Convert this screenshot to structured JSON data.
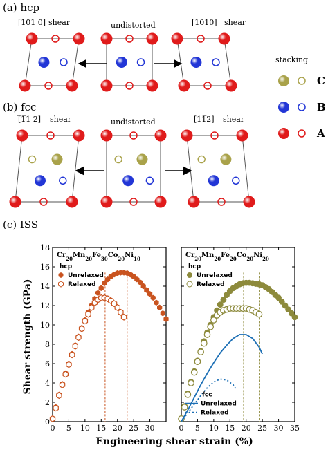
{
  "panel_a": {
    "label": "(a) hcp",
    "left_direction": "[1̅0̅1 0]",
    "left_shear": "shear",
    "center": "undistorted",
    "right_direction": "[10̅1̅0]",
    "right_shear": "shear"
  },
  "panel_b": {
    "label": "(b) fcc",
    "left_direction": "[̅1̅1 2]",
    "left_shear": "shear",
    "center": "undistorted",
    "right_direction": "[11̅2]",
    "right_shear": "shear"
  },
  "stacking": {
    "title": "stacking",
    "rows": [
      {
        "label": "C",
        "color": "#a9a24a"
      },
      {
        "label": "B",
        "color": "#2236d6"
      },
      {
        "label": "A",
        "color": "#e01b1b"
      }
    ]
  },
  "panel_c": {
    "label": "(c) ISS"
  },
  "chart_data": [
    {
      "type": "scatter",
      "title": "Cr20Mn20Fe30Co20Ni10",
      "title_parts": [
        [
          "Cr",
          "20"
        ],
        [
          "Mn",
          "20"
        ],
        [
          "Fe",
          "30"
        ],
        [
          "Co",
          "20"
        ],
        [
          "Ni",
          "10"
        ]
      ],
      "xlabel": "Engineering shear strain (%)",
      "ylabel": "Shear strength (GPa)",
      "xlim": [
        0,
        35
      ],
      "ylim": [
        0,
        18
      ],
      "xticks": [
        0,
        5,
        10,
        15,
        20,
        25,
        30
      ],
      "yticks": [
        0,
        2,
        4,
        6,
        8,
        10,
        12,
        14,
        16,
        18
      ],
      "legend_title": "hcp",
      "legend_position": "top-left",
      "color": "#c9531f",
      "series": [
        {
          "name": "Unrelaxed",
          "style": "filled-hexagon",
          "x": [
            0,
            1,
            2,
            3,
            4,
            5,
            6,
            7,
            8,
            9,
            10,
            11,
            12,
            13,
            14,
            15,
            16,
            17,
            18,
            19,
            20,
            21,
            22,
            23,
            24,
            25,
            26,
            27,
            28,
            29,
            30,
            31,
            32,
            33,
            34,
            35
          ],
          "y": [
            0.3,
            1.5,
            2.8,
            3.9,
            5.0,
            6.0,
            7.0,
            7.9,
            8.8,
            9.7,
            10.5,
            11.3,
            12.0,
            12.7,
            13.3,
            13.8,
            14.3,
            14.7,
            15.0,
            15.2,
            15.35,
            15.4,
            15.4,
            15.35,
            15.2,
            15.0,
            14.7,
            14.4,
            14.0,
            13.6,
            13.2,
            12.8,
            12.3,
            11.8,
            11.2,
            10.6
          ]
        },
        {
          "name": "Relaxed",
          "style": "open-hexagon",
          "x": [
            0,
            1,
            2,
            3,
            4,
            5,
            6,
            7,
            8,
            9,
            10,
            11,
            12,
            13,
            14,
            15,
            16,
            17,
            18,
            19,
            20,
            21,
            22
          ],
          "y": [
            0.3,
            1.4,
            2.7,
            3.8,
            4.9,
            5.9,
            6.9,
            7.8,
            8.7,
            9.6,
            10.4,
            11.1,
            11.8,
            12.3,
            12.6,
            12.8,
            12.8,
            12.7,
            12.5,
            12.2,
            11.8,
            11.3,
            10.8
          ]
        }
      ],
      "vlines": [
        16.2,
        23.0
      ]
    },
    {
      "type": "line",
      "title": "Cr20Mn20Fe20Co20Ni20",
      "title_parts": [
        [
          "Cr",
          "20"
        ],
        [
          "Mn",
          "20"
        ],
        [
          "Fe",
          "20"
        ],
        [
          "Co",
          "20"
        ],
        [
          "Ni",
          "20"
        ]
      ],
      "xlabel": "Engineering shear strain (%)",
      "xlim": [
        0,
        35
      ],
      "ylim": [
        0,
        18
      ],
      "xticks": [
        0,
        5,
        10,
        15,
        20,
        25,
        30,
        35
      ],
      "yticks": [
        0,
        2,
        4,
        6,
        8,
        10,
        12,
        14,
        16,
        18
      ],
      "legend_title": "hcp",
      "legend2_title": "fcc",
      "color": "#8d8a3c",
      "line_color": "#1c6fb5",
      "series": [
        {
          "name": "Unrelaxed",
          "group": "hcp",
          "style": "filled-circle",
          "x": [
            0,
            1,
            2,
            3,
            4,
            5,
            6,
            7,
            8,
            9,
            10,
            11,
            12,
            13,
            14,
            15,
            16,
            17,
            18,
            19,
            20,
            21,
            22,
            23,
            24,
            25,
            26,
            27,
            28,
            29,
            30,
            31,
            32,
            33,
            34,
            35
          ],
          "y": [
            0.3,
            1.6,
            2.9,
            4.1,
            5.2,
            6.3,
            7.3,
            8.3,
            9.2,
            10.0,
            10.8,
            11.5,
            12.1,
            12.6,
            13.1,
            13.5,
            13.8,
            14.0,
            14.2,
            14.3,
            14.35,
            14.35,
            14.3,
            14.25,
            14.2,
            14.1,
            13.9,
            13.7,
            13.4,
            13.1,
            12.8,
            12.4,
            12.0,
            11.6,
            11.2,
            10.8
          ]
        },
        {
          "name": "Relaxed",
          "group": "hcp",
          "style": "open-circle",
          "x": [
            0,
            1,
            2,
            3,
            4,
            5,
            6,
            7,
            8,
            9,
            10,
            11,
            12,
            13,
            14,
            15,
            16,
            17,
            18,
            19,
            20,
            21,
            22,
            23,
            24
          ],
          "y": [
            0.3,
            1.5,
            2.8,
            4.0,
            5.1,
            6.2,
            7.2,
            8.1,
            9.0,
            9.8,
            10.5,
            11.0,
            11.3,
            11.5,
            11.6,
            11.7,
            11.7,
            11.7,
            11.7,
            11.7,
            11.7,
            11.6,
            11.5,
            11.3,
            11.1
          ]
        },
        {
          "name": "Unrelaxed",
          "group": "fcc",
          "style": "solid-line",
          "x": [
            0,
            2,
            4,
            6,
            8,
            10,
            12,
            14,
            16,
            18,
            20,
            22,
            24,
            25
          ],
          "y": [
            0,
            1.2,
            2.5,
            3.8,
            5.0,
            6.1,
            7.1,
            7.9,
            8.6,
            9.0,
            9.0,
            8.6,
            7.7,
            7.0
          ]
        },
        {
          "name": "Relaxed",
          "group": "fcc",
          "style": "dotted-line",
          "x": [
            0,
            2,
            4,
            6,
            8,
            10,
            12,
            14,
            16,
            17
          ],
          "y": [
            0,
            0.9,
            1.8,
            2.7,
            3.5,
            4.1,
            4.4,
            4.3,
            3.8,
            3.3
          ]
        }
      ],
      "vlines": [
        19.2,
        24.2
      ]
    }
  ]
}
